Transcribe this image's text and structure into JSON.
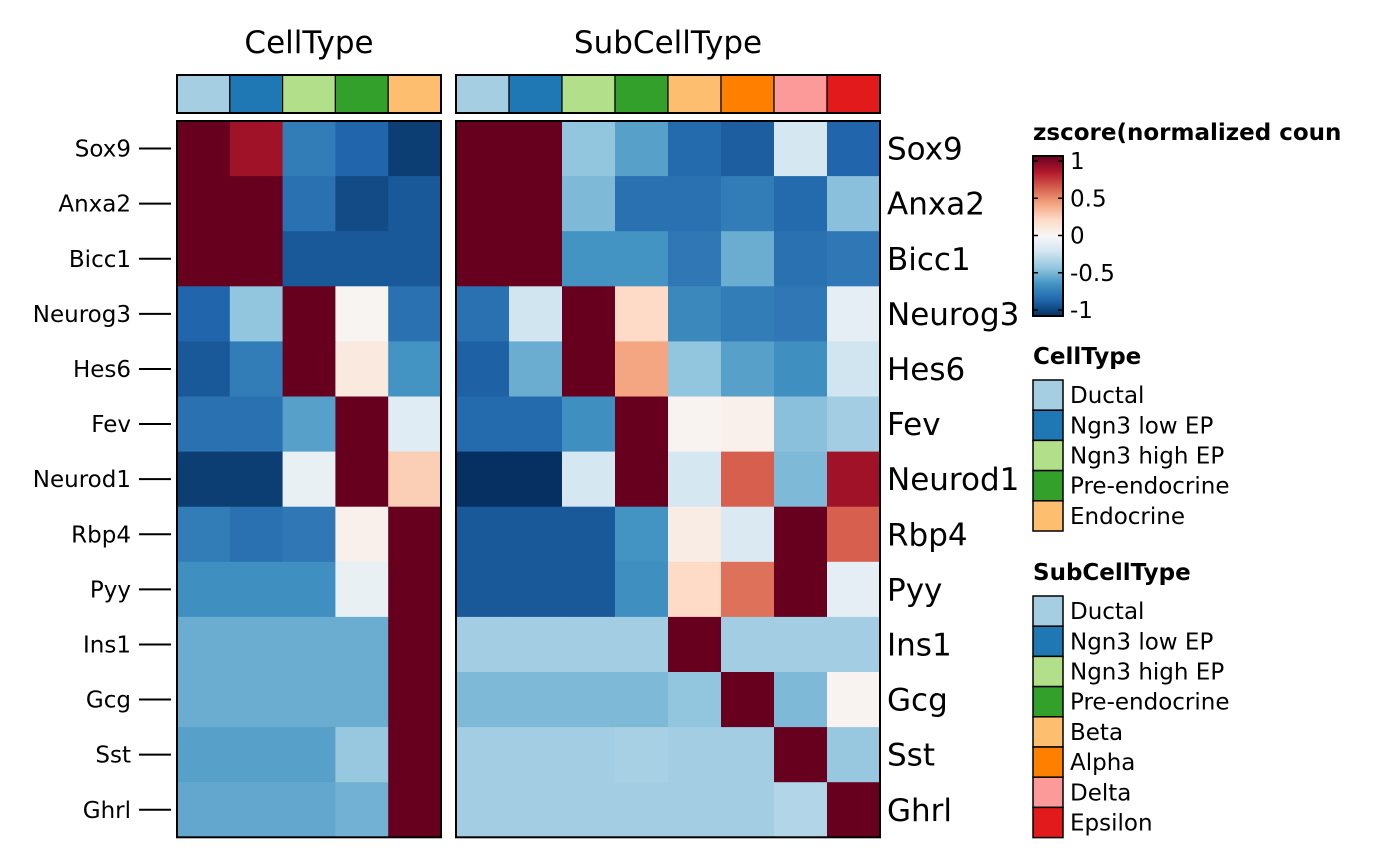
{
  "chart_data": {
    "type": "heatmap",
    "genes": [
      "Sox9",
      "Anxa2",
      "Bicc1",
      "Neurog3",
      "Hes6",
      "Fev",
      "Neurod1",
      "Rbp4",
      "Pyy",
      "Ins1",
      "Gcg",
      "Sst",
      "Ghrl"
    ],
    "panels": [
      {
        "title": "CellType",
        "groups": [
          "Ductal",
          "Ngn3 low EP",
          "Ngn3 high EP",
          "Pre-endocrine",
          "Endocrine"
        ],
        "group_colors": [
          "#a6cee3",
          "#1f78b4",
          "#b2df8a",
          "#33a02c",
          "#fdbf6f"
        ],
        "values": [
          [
            1,
            0.85,
            -0.7,
            -0.8,
            -0.95
          ],
          [
            1,
            1,
            -0.75,
            -0.9,
            -0.85
          ],
          [
            1,
            1,
            -0.85,
            -0.85,
            -0.85
          ],
          [
            -0.8,
            -0.4,
            1,
            0.02,
            -0.75
          ],
          [
            -0.85,
            -0.7,
            1,
            0.1,
            -0.6
          ],
          [
            -0.75,
            -0.75,
            -0.55,
            1,
            -0.12
          ],
          [
            -0.95,
            -0.95,
            -0.08,
            1,
            0.25
          ],
          [
            -0.7,
            -0.75,
            -0.72,
            0.05,
            1
          ],
          [
            -0.62,
            -0.62,
            -0.62,
            -0.08,
            1
          ],
          [
            -0.5,
            -0.5,
            -0.5,
            -0.5,
            1
          ],
          [
            -0.5,
            -0.5,
            -0.5,
            -0.5,
            1
          ],
          [
            -0.55,
            -0.55,
            -0.55,
            -0.38,
            1
          ],
          [
            -0.52,
            -0.52,
            -0.52,
            -0.48,
            1
          ]
        ]
      },
      {
        "title": "SubCellType",
        "groups": [
          "Ductal",
          "Ngn3 low EP",
          "Ngn3 high EP",
          "Pre-endocrine",
          "Beta",
          "Alpha",
          "Delta",
          "Epsilon"
        ],
        "group_colors": [
          "#a6cee3",
          "#1f78b4",
          "#b2df8a",
          "#33a02c",
          "#fdbf6f",
          "#ff7f00",
          "#fb9a99",
          "#e31a1c"
        ],
        "values": [
          [
            1,
            1,
            -0.4,
            -0.55,
            -0.78,
            -0.83,
            -0.18,
            -0.8
          ],
          [
            1,
            1,
            -0.45,
            -0.75,
            -0.75,
            -0.7,
            -0.78,
            -0.42
          ],
          [
            1,
            1,
            -0.6,
            -0.6,
            -0.72,
            -0.5,
            -0.75,
            -0.72
          ],
          [
            -0.75,
            -0.2,
            1,
            0.2,
            -0.65,
            -0.7,
            -0.72,
            -0.1
          ],
          [
            -0.82,
            -0.5,
            1,
            0.4,
            -0.4,
            -0.55,
            -0.62,
            -0.2
          ],
          [
            -0.78,
            -0.78,
            -0.62,
            1,
            0.03,
            0.05,
            -0.42,
            -0.35
          ],
          [
            -1,
            -1,
            -0.18,
            1,
            -0.18,
            0.6,
            -0.45,
            0.85
          ],
          [
            -0.85,
            -0.85,
            -0.85,
            -0.6,
            0.08,
            -0.15,
            1,
            0.6
          ],
          [
            -0.85,
            -0.85,
            -0.85,
            -0.62,
            0.2,
            0.55,
            1,
            -0.1
          ],
          [
            -0.35,
            -0.35,
            -0.35,
            -0.35,
            1,
            -0.35,
            -0.35,
            -0.35
          ],
          [
            -0.45,
            -0.45,
            -0.45,
            -0.45,
            -0.4,
            1,
            -0.45,
            0.03
          ],
          [
            -0.35,
            -0.35,
            -0.35,
            -0.33,
            -0.35,
            -0.35,
            1,
            -0.38
          ],
          [
            -0.35,
            -0.35,
            -0.35,
            -0.35,
            -0.35,
            -0.35,
            -0.3,
            1
          ]
        ]
      }
    ],
    "color_scale": {
      "title": "zscore(normalized coun",
      "min": -1,
      "max": 1,
      "ticks": [
        1,
        0.5,
        0,
        -0.5,
        -1
      ],
      "tick_labels": [
        "1",
        "0.5",
        "0",
        "-0.5",
        "-1"
      ],
      "colors": [
        "#053061",
        "#2166ac",
        "#4393c3",
        "#92c5de",
        "#d1e5f0",
        "#f7f7f7",
        "#fddbc7",
        "#f4a582",
        "#d6604d",
        "#b2182b",
        "#67001f"
      ]
    },
    "legends": [
      {
        "title": "CellType",
        "items": [
          {
            "label": "Ductal",
            "color": "#a6cee3"
          },
          {
            "label": "Ngn3 low EP",
            "color": "#1f78b4"
          },
          {
            "label": "Ngn3 high EP",
            "color": "#b2df8a"
          },
          {
            "label": "Pre-endocrine",
            "color": "#33a02c"
          },
          {
            "label": "Endocrine",
            "color": "#fdbf6f"
          }
        ]
      },
      {
        "title": "SubCellType",
        "items": [
          {
            "label": "Ductal",
            "color": "#a6cee3"
          },
          {
            "label": "Ngn3 low EP",
            "color": "#1f78b4"
          },
          {
            "label": "Ngn3 high EP",
            "color": "#b2df8a"
          },
          {
            "label": "Pre-endocrine",
            "color": "#33a02c"
          },
          {
            "label": "Beta",
            "color": "#fdbf6f"
          },
          {
            "label": "Alpha",
            "color": "#ff7f00"
          },
          {
            "label": "Delta",
            "color": "#fb9a99"
          },
          {
            "label": "Epsilon",
            "color": "#e31a1c"
          }
        ]
      }
    ]
  }
}
